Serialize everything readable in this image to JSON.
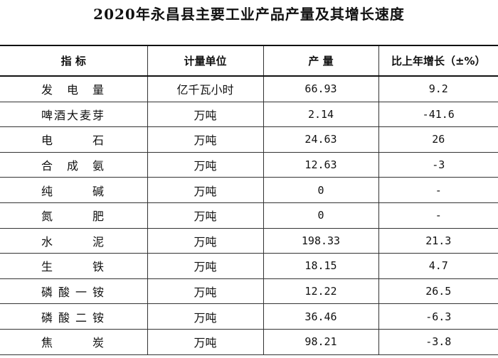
{
  "header": {
    "title": "2020年永昌县主要工业产品产量及其增长速度"
  },
  "table": {
    "columns": [
      "指 标",
      "计量单位",
      "产 量",
      "比上年增长（±%）"
    ],
    "rows": [
      [
        "发 电 量",
        "亿千瓦小时",
        "66.93",
        "9.2"
      ],
      [
        "啤酒大麦芽",
        "万吨",
        "2.14",
        "-41.6"
      ],
      [
        "电 石",
        "万吨",
        "24.63",
        "26"
      ],
      [
        "合 成 氨",
        "万吨",
        "12.63",
        "-3"
      ],
      [
        "纯 碱",
        "万吨",
        "0",
        "-"
      ],
      [
        "氮 肥",
        "万吨",
        "0",
        "-"
      ],
      [
        "水 泥",
        "万吨",
        "198.33",
        "21.3"
      ],
      [
        "生 铁",
        "万吨",
        "18.15",
        "4.7"
      ],
      [
        "磷酸一铵",
        "万吨",
        "12.22",
        "26.5"
      ],
      [
        "磷酸二铵",
        "万吨",
        "36.46",
        "-6.3"
      ],
      [
        "焦 炭",
        "万吨",
        "98.21",
        "-3.8"
      ]
    ]
  }
}
